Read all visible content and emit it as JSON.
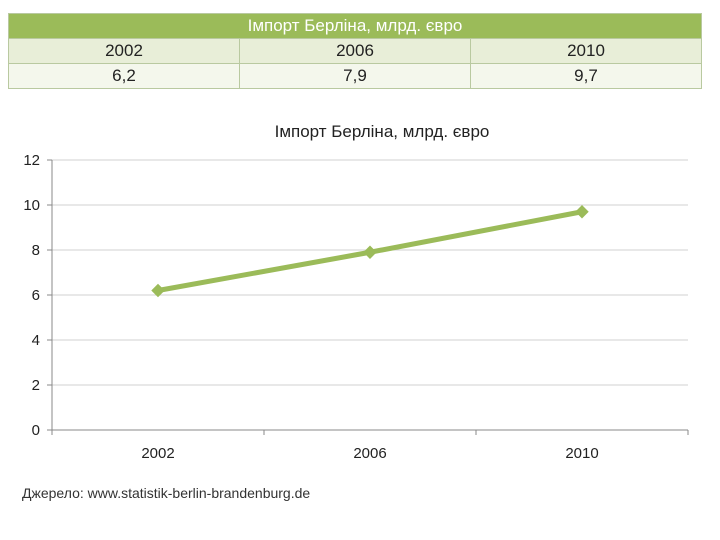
{
  "table": {
    "title": "Імпорт Берліна, млрд. євро",
    "years": [
      "2002",
      "2006",
      "2010"
    ],
    "values": [
      "6,2",
      "7,9",
      "9,7"
    ]
  },
  "chart_data": {
    "type": "line",
    "title": "Імпорт Берліна, млрд. євро",
    "categories": [
      "2002",
      "2006",
      "2010"
    ],
    "series": [
      {
        "name": "Імпорт Берліна, млрд. євро",
        "values": [
          6.2,
          7.9,
          9.7
        ],
        "color": "#9bbb59"
      }
    ],
    "ylim": [
      0,
      12
    ],
    "yticks": [
      0,
      2,
      4,
      6,
      8,
      10,
      12
    ],
    "grid": true,
    "xlabel": "",
    "ylabel": ""
  },
  "source": "Джерело: www.statistik-berlin-brandenburg.de",
  "colors": {
    "accent": "#9bbb59",
    "gridline": "#d0d0d0",
    "axis": "#888888"
  }
}
